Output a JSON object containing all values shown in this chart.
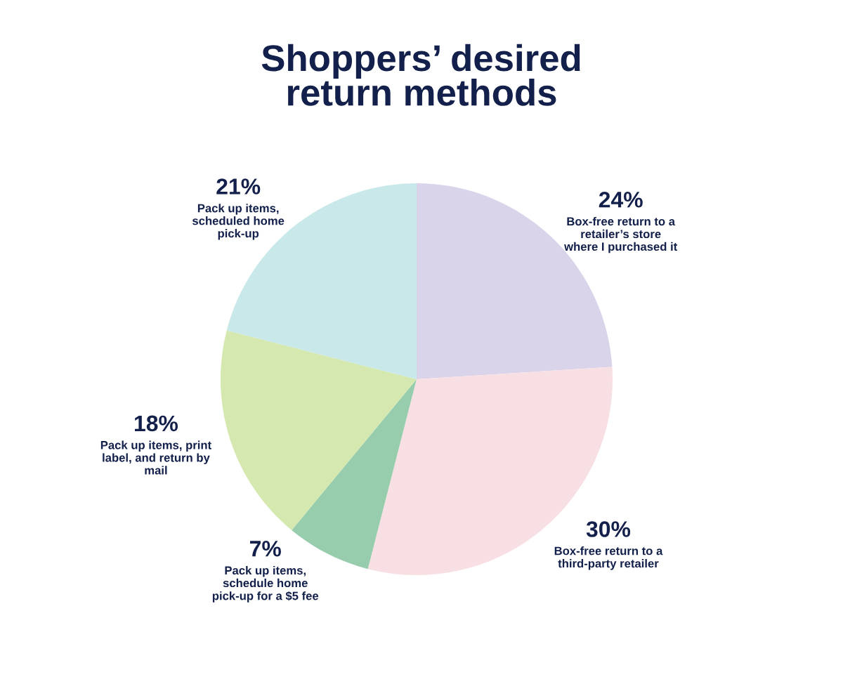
{
  "chart_data": {
    "type": "pie",
    "title": "Shoppers’ desired\nreturn methods",
    "categories": [
      "Box-free return to a\nretailer’s store\nwhere I purchased it",
      "Box-free return to a\nthird-party retailer",
      "Pack up items,\nschedule home\npick-up for a $5 fee",
      "Pack up items, print\nlabel, and return by\nmail",
      "Pack up items,\nscheduled home\npick-up"
    ],
    "values": [
      24,
      30,
      7,
      18,
      21
    ],
    "value_labels": [
      "24%",
      "30%",
      "7%",
      "18%",
      "21%"
    ],
    "colors": [
      "#d9d4ea",
      "#f8dfe3",
      "#97cdac",
      "#d4e8b0",
      "#c9e8e9"
    ]
  }
}
